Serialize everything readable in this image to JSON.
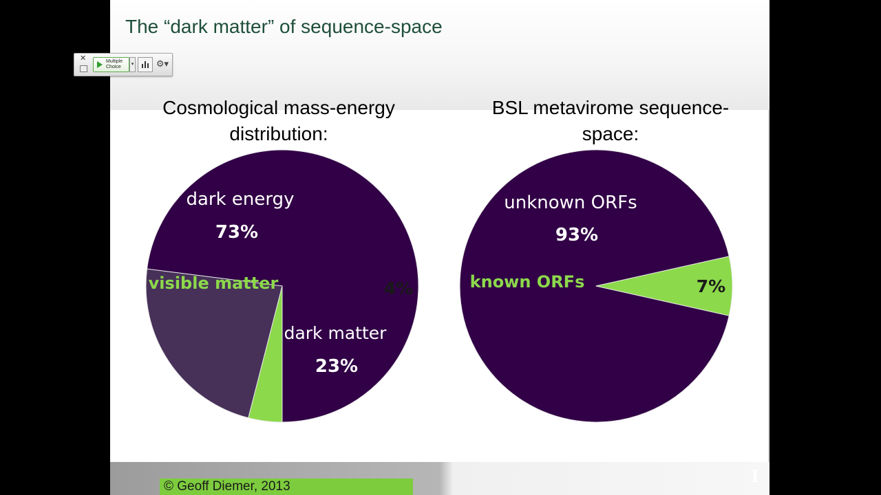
{
  "slide": {
    "title": "The “dark matter” of sequence-space",
    "footer": "© Geoff Diemer, 2013",
    "corner_mark": "I"
  },
  "toolbar": {
    "mode_line1": "Multiple",
    "mode_line2": "Choice",
    "close_glyph": "✕",
    "dropdown_glyph": "▾",
    "gear_glyph": "⚙▾"
  },
  "colors": {
    "dark_purple": "#310046",
    "medium_purple": "#473159",
    "green": "#8cd94b",
    "title_green": "#1f4f3a"
  },
  "chart_data": [
    {
      "type": "pie",
      "title_lines": [
        "Cosmological mass-energy",
        "distribution:"
      ],
      "slices": [
        {
          "name": "dark energy",
          "value": 73,
          "label": "73%"
        },
        {
          "name": "visible matter",
          "value": 4,
          "label": "4%"
        },
        {
          "name": "dark matter",
          "value": 23,
          "label": "23%"
        }
      ]
    },
    {
      "type": "pie",
      "title_lines": [
        "BSL metavirome sequence-",
        "space:"
      ],
      "slices": [
        {
          "name": "unknown ORFs",
          "value": 93,
          "label": "93%"
        },
        {
          "name": "known ORFs",
          "value": 7,
          "label": "7%"
        }
      ]
    }
  ]
}
